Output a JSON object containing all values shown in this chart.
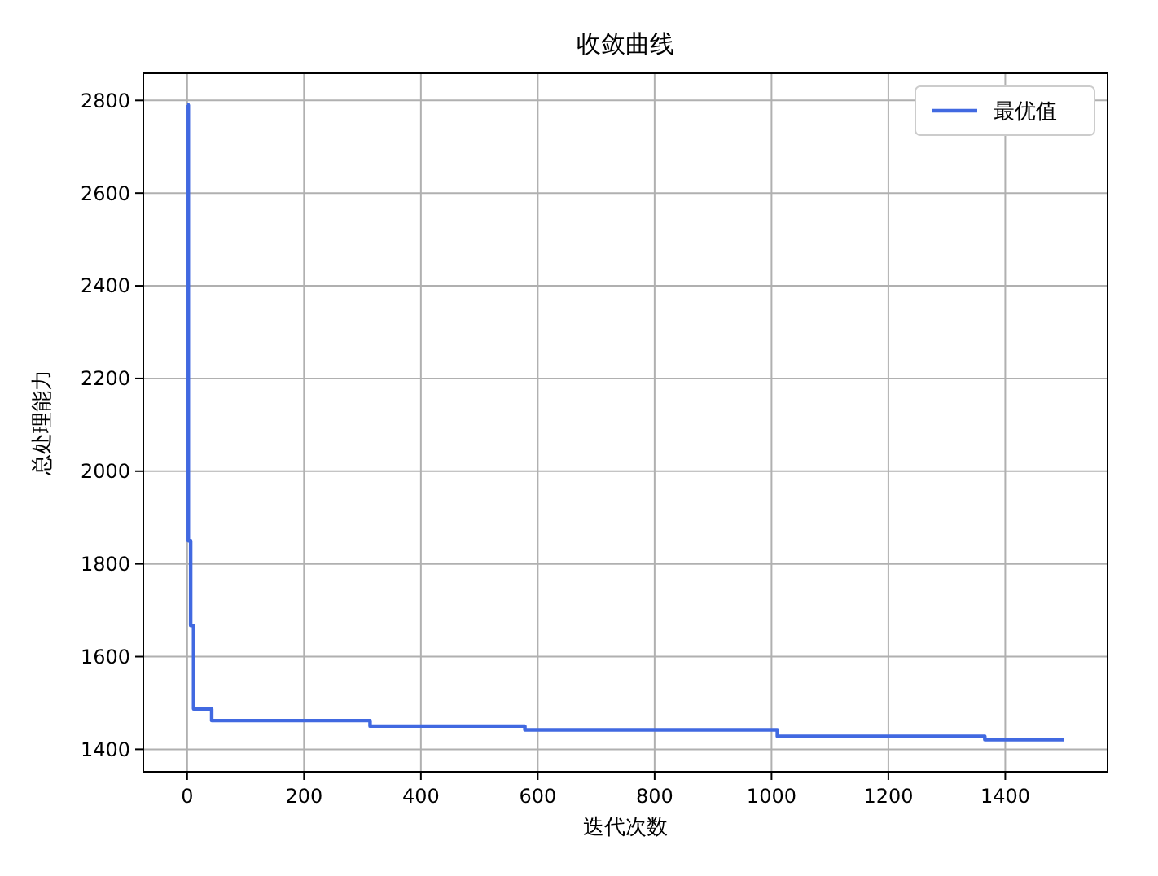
{
  "chart_data": {
    "type": "step",
    "title": "收敛曲线",
    "xlabel": "迭代次数",
    "ylabel": "总处理能力",
    "x": [
      0,
      2,
      6,
      11,
      42,
      313,
      578,
      1010,
      1365,
      1500
    ],
    "series": [
      {
        "name": "最优值",
        "color": "#4169e1",
        "values": [
          2790,
          1850,
          1667,
          1487,
          1462,
          1450,
          1442,
          1428,
          1421,
          1421
        ]
      }
    ],
    "xlim": [
      -75,
      1575
    ],
    "xticks": [
      0,
      200,
      400,
      600,
      800,
      1000,
      1200,
      1400
    ],
    "ylim": [
      1351.5,
      2858.5
    ],
    "yticks": [
      1400,
      1600,
      1800,
      2000,
      2200,
      2400,
      2600,
      2800
    ],
    "grid": true,
    "legend": "top right",
    "line_style": "solid"
  }
}
